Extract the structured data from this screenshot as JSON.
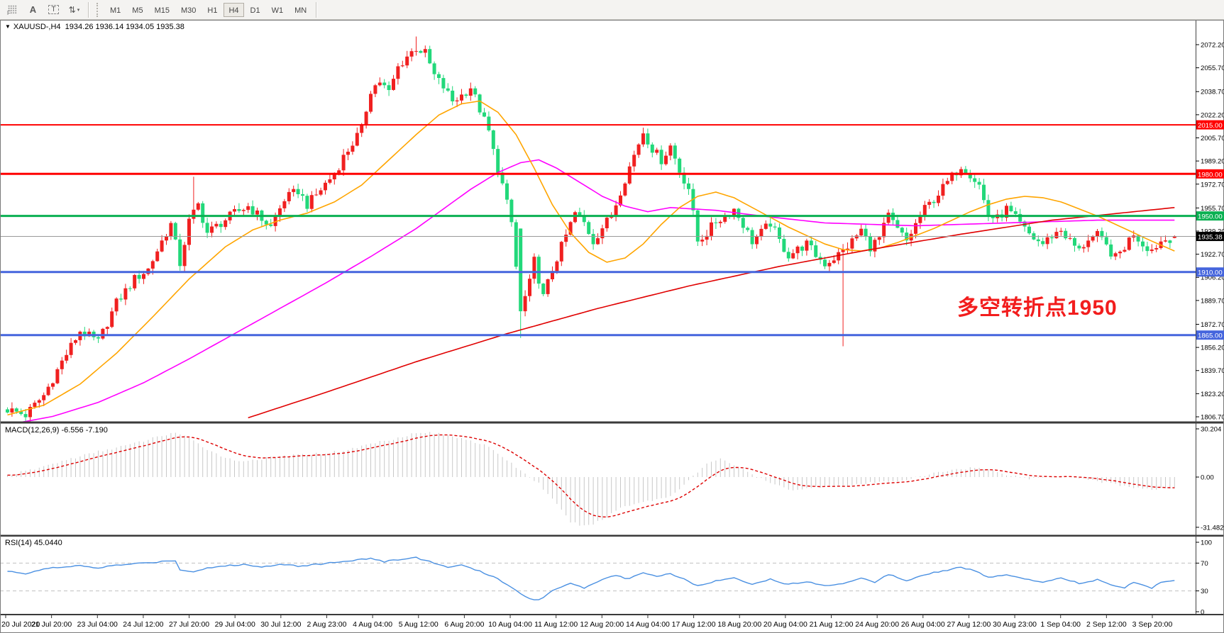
{
  "toolbar": {
    "tools": [
      {
        "name": "fibonacci-grid-tool",
        "type": "grid-f",
        "glyph": "F"
      },
      {
        "name": "text-tool",
        "type": "letter",
        "glyph": "A"
      },
      {
        "name": "text-label-tool",
        "type": "dashed-t",
        "glyph": "T"
      },
      {
        "name": "arrows-tool",
        "type": "arrows",
        "glyph": "⇅",
        "caret": "▾"
      }
    ],
    "timeframes": [
      "M1",
      "M5",
      "M15",
      "M30",
      "H1",
      "H4",
      "D1",
      "W1",
      "MN"
    ],
    "active_timeframe": "H4"
  },
  "chart": {
    "title_symbol": "XAUUSD-,H4",
    "title_ohlc": "1934.26 1936.14 1934.05 1935.38",
    "annotation": {
      "text": "多空转折点1950",
      "color": "#f21d1d"
    },
    "levels": [
      {
        "price": 2015.0,
        "label": "2015.00",
        "color": "#ff0000",
        "width": 2
      },
      {
        "price": 1980.0,
        "label": "1980.00",
        "color": "#ff0000",
        "width": 3
      },
      {
        "price": 1950.0,
        "label": "1950.00",
        "color": "#0ab052",
        "width": 3
      },
      {
        "price": 1910.0,
        "label": "1910.00",
        "color": "#4565dd",
        "width": 3
      },
      {
        "price": 1865.0,
        "label": "1865.00",
        "color": "#4565dd",
        "width": 3
      }
    ],
    "current_price": {
      "value": 1935.38,
      "label": "1935.38",
      "line_color": "#9a9a9a",
      "box_color": "#000000"
    },
    "price_axis_ticks": [
      "2072.20",
      "2055.70",
      "2038.70",
      "2022.20",
      "2005.70",
      "1989.20",
      "1972.70",
      "1955.70",
      "1939.20",
      "1922.70",
      "1906.20",
      "1889.70",
      "1872.70",
      "1856.20",
      "1839.70",
      "1823.20",
      "1806.70"
    ],
    "time_axis_ticks": [
      "20 Jul 2020",
      "21 Jul 20:00",
      "23 Jul 04:00",
      "24 Jul 12:00",
      "27 Jul 20:00",
      "29 Jul 04:00",
      "30 Jul 12:00",
      "2 Aug 23:00",
      "4 Aug 04:00",
      "5 Aug 12:00",
      "6 Aug 20:00",
      "10 Aug 04:00",
      "11 Aug 12:00",
      "12 Aug 20:00",
      "14 Aug 04:00",
      "17 Aug 12:00",
      "18 Aug 20:00",
      "20 Aug 04:00",
      "21 Aug 12:00",
      "24 Aug 20:00",
      "26 Aug 04:00",
      "27 Aug 12:00",
      "30 Aug 23:00",
      "1 Sep 04:00",
      "2 Sep 12:00",
      "3 Sep 20:00"
    ]
  },
  "macd": {
    "label": "MACD(12,26,9) -6.556 -7.190",
    "axis": [
      "30.204",
      "0.00",
      "-31.482"
    ],
    "hist_color": "#c8c8c8",
    "signal_color": "#dd0000"
  },
  "rsi": {
    "label": "RSI(14) 45.0440",
    "axis": [
      "100",
      "70",
      "30",
      "0"
    ],
    "levels": [
      70,
      30
    ],
    "line_color": "#4a90e2",
    "level_color": "#c0c0c0"
  },
  "chart_data": {
    "type": "candlestick",
    "symbol": "XAUUSD-",
    "period": "H4",
    "title": "XAUUSD- H4 with MACD(12,26,9) and RSI(14)",
    "ylim": [
      1806.7,
      2072.2
    ],
    "macd_ylim": [
      -31.482,
      30.204
    ],
    "rsi_ylim": [
      0,
      100
    ],
    "last_ohlc": {
      "open": 1934.26,
      "high": 1936.14,
      "low": 1934.05,
      "close": 1935.38
    },
    "candles_count": 258,
    "bull_color": "#f02020",
    "bear_color": "#22d87a",
    "ma_colors": {
      "fast": "#ffa500",
      "mid": "#ff00ff",
      "slow": "#e00000"
    },
    "price_path": [
      [
        0,
        1812
      ],
      [
        4,
        1808
      ],
      [
        8,
        1822
      ],
      [
        12,
        1846
      ],
      [
        16,
        1868
      ],
      [
        20,
        1860
      ],
      [
        24,
        1888
      ],
      [
        28,
        1905
      ],
      [
        31,
        1912
      ],
      [
        34,
        1932
      ],
      [
        36,
        1944
      ],
      [
        38,
        1916
      ],
      [
        40,
        1946
      ],
      [
        42,
        1958
      ],
      [
        44,
        1938
      ],
      [
        47,
        1945
      ],
      [
        50,
        1952
      ],
      [
        53,
        1957
      ],
      [
        56,
        1948
      ],
      [
        58,
        1942
      ],
      [
        61,
        1962
      ],
      [
        64,
        1968
      ],
      [
        66,
        1958
      ],
      [
        68,
        1965
      ],
      [
        70,
        1973
      ],
      [
        72,
        1980
      ],
      [
        74,
        1992
      ],
      [
        76,
        2002
      ],
      [
        78,
        2012
      ],
      [
        80,
        2040
      ],
      [
        82,
        2046
      ],
      [
        84,
        2038
      ],
      [
        86,
        2056
      ],
      [
        88,
        2064
      ],
      [
        90,
        2070
      ],
      [
        92,
        2066
      ],
      [
        94,
        2050
      ],
      [
        96,
        2042
      ],
      [
        98,
        2032
      ],
      [
        100,
        2036
      ],
      [
        102,
        2042
      ],
      [
        104,
        2026
      ],
      [
        106,
        2010
      ],
      [
        107,
        1996
      ],
      [
        109,
        1972
      ],
      [
        111,
        1945
      ],
      [
        113,
        1882
      ],
      [
        115,
        1902
      ],
      [
        116,
        1918
      ],
      [
        118,
        1892
      ],
      [
        120,
        1912
      ],
      [
        122,
        1928
      ],
      [
        125,
        1952
      ],
      [
        127,
        1945
      ],
      [
        129,
        1932
      ],
      [
        131,
        1942
      ],
      [
        133,
        1950
      ],
      [
        135,
        1968
      ],
      [
        137,
        1985
      ],
      [
        139,
        2002
      ],
      [
        140,
        2010
      ],
      [
        142,
        1998
      ],
      [
        144,
        1990
      ],
      [
        146,
        2000
      ],
      [
        148,
        1982
      ],
      [
        150,
        1970
      ],
      [
        152,
        1932
      ],
      [
        154,
        1938
      ],
      [
        156,
        1946
      ],
      [
        158,
        1950
      ],
      [
        160,
        1955
      ],
      [
        162,
        1944
      ],
      [
        164,
        1932
      ],
      [
        166,
        1938
      ],
      [
        168,
        1945
      ],
      [
        170,
        1932
      ],
      [
        172,
        1922
      ],
      [
        174,
        1926
      ],
      [
        176,
        1930
      ],
      [
        178,
        1922
      ],
      [
        180,
        1916
      ],
      [
        182,
        1920
      ],
      [
        184,
        1925
      ],
      [
        186,
        1932
      ],
      [
        188,
        1940
      ],
      [
        190,
        1928
      ],
      [
        192,
        1934
      ],
      [
        194,
        1950
      ],
      [
        196,
        1940
      ],
      [
        198,
        1932
      ],
      [
        200,
        1944
      ],
      [
        202,
        1955
      ],
      [
        204,
        1962
      ],
      [
        206,
        1970
      ],
      [
        208,
        1978
      ],
      [
        210,
        1986
      ],
      [
        212,
        1980
      ],
      [
        214,
        1972
      ],
      [
        216,
        1950
      ],
      [
        218,
        1948
      ],
      [
        220,
        1955
      ],
      [
        222,
        1948
      ],
      [
        224,
        1940
      ],
      [
        226,
        1934
      ],
      [
        228,
        1930
      ],
      [
        230,
        1936
      ],
      [
        232,
        1940
      ],
      [
        234,
        1932
      ],
      [
        236,
        1925
      ],
      [
        238,
        1934
      ],
      [
        240,
        1936
      ],
      [
        242,
        1928
      ],
      [
        244,
        1920
      ],
      [
        246,
        1928
      ],
      [
        248,
        1938
      ],
      [
        250,
        1930
      ],
      [
        252,
        1926
      ],
      [
        254,
        1932
      ],
      [
        257,
        1935.38
      ]
    ],
    "spikes": [
      {
        "i": 41,
        "high": 1978
      },
      {
        "i": 90,
        "high": 2078
      },
      {
        "i": 113,
        "open": 1941,
        "close": 1882,
        "low": 1863
      },
      {
        "i": 184,
        "low": 1857
      },
      {
        "i": 257,
        "open": 1934.26,
        "high": 1936.14,
        "low": 1934.05,
        "close": 1935.38
      }
    ],
    "ma_fast": [
      [
        0,
        1808
      ],
      [
        8,
        1815
      ],
      [
        16,
        1830
      ],
      [
        24,
        1852
      ],
      [
        32,
        1878
      ],
      [
        40,
        1905
      ],
      [
        48,
        1928
      ],
      [
        54,
        1940
      ],
      [
        60,
        1947
      ],
      [
        66,
        1952
      ],
      [
        72,
        1960
      ],
      [
        78,
        1972
      ],
      [
        84,
        1990
      ],
      [
        90,
        2008
      ],
      [
        95,
        2022
      ],
      [
        100,
        2030
      ],
      [
        104,
        2032
      ],
      [
        108,
        2024
      ],
      [
        112,
        2008
      ],
      [
        116,
        1984
      ],
      [
        120,
        1958
      ],
      [
        124,
        1938
      ],
      [
        128,
        1924
      ],
      [
        132,
        1917
      ],
      [
        136,
        1920
      ],
      [
        140,
        1930
      ],
      [
        144,
        1944
      ],
      [
        148,
        1956
      ],
      [
        152,
        1964
      ],
      [
        156,
        1967
      ],
      [
        160,
        1963
      ],
      [
        164,
        1956
      ],
      [
        168,
        1949
      ],
      [
        172,
        1942
      ],
      [
        176,
        1936
      ],
      [
        180,
        1930
      ],
      [
        184,
        1926
      ],
      [
        188,
        1925
      ],
      [
        192,
        1927
      ],
      [
        196,
        1931
      ],
      [
        200,
        1936
      ],
      [
        204,
        1941
      ],
      [
        208,
        1947
      ],
      [
        212,
        1953
      ],
      [
        216,
        1958
      ],
      [
        220,
        1962
      ],
      [
        224,
        1964
      ],
      [
        228,
        1963
      ],
      [
        232,
        1960
      ],
      [
        236,
        1955
      ],
      [
        240,
        1950
      ],
      [
        244,
        1944
      ],
      [
        248,
        1938
      ],
      [
        252,
        1932
      ],
      [
        257,
        1925
      ]
    ],
    "ma_mid": [
      [
        0,
        1801
      ],
      [
        10,
        1807
      ],
      [
        20,
        1817
      ],
      [
        30,
        1831
      ],
      [
        40,
        1848
      ],
      [
        50,
        1866
      ],
      [
        60,
        1884
      ],
      [
        70,
        1902
      ],
      [
        80,
        1921
      ],
      [
        90,
        1941
      ],
      [
        96,
        1955
      ],
      [
        102,
        1969
      ],
      [
        108,
        1981
      ],
      [
        113,
        1988
      ],
      [
        117,
        1990
      ],
      [
        121,
        1984
      ],
      [
        126,
        1974
      ],
      [
        131,
        1964
      ],
      [
        136,
        1957
      ],
      [
        141,
        1953
      ],
      [
        146,
        1956
      ],
      [
        156,
        1954
      ],
      [
        166,
        1950
      ],
      [
        180,
        1945
      ],
      [
        200,
        1943
      ],
      [
        220,
        1945
      ],
      [
        240,
        1947
      ],
      [
        257,
        1947
      ]
    ],
    "ma_slow": [
      [
        53,
        1806
      ],
      [
        70,
        1824
      ],
      [
        90,
        1846
      ],
      [
        110,
        1866
      ],
      [
        130,
        1884
      ],
      [
        150,
        1900
      ],
      [
        170,
        1914
      ],
      [
        190,
        1926
      ],
      [
        210,
        1937
      ],
      [
        230,
        1947
      ],
      [
        245,
        1952
      ],
      [
        257,
        1956
      ]
    ],
    "macd_path": [
      [
        0,
        1
      ],
      [
        6,
        5
      ],
      [
        12,
        10
      ],
      [
        20,
        16
      ],
      [
        28,
        21
      ],
      [
        34,
        26
      ],
      [
        37,
        28
      ],
      [
        40,
        24
      ],
      [
        45,
        16
      ],
      [
        50,
        10
      ],
      [
        55,
        11
      ],
      [
        60,
        13
      ],
      [
        65,
        14
      ],
      [
        70,
        15
      ],
      [
        75,
        17
      ],
      [
        80,
        21
      ],
      [
        85,
        24
      ],
      [
        89,
        27
      ],
      [
        93,
        28
      ],
      [
        97,
        26
      ],
      [
        101,
        24
      ],
      [
        105,
        20
      ],
      [
        109,
        13
      ],
      [
        113,
        4
      ],
      [
        117,
        -4
      ],
      [
        120,
        -14
      ],
      [
        124,
        -28
      ],
      [
        127,
        -31
      ],
      [
        131,
        -27
      ],
      [
        135,
        -19
      ],
      [
        139,
        -16
      ],
      [
        143,
        -14
      ],
      [
        146,
        -12
      ],
      [
        150,
        -2
      ],
      [
        154,
        8
      ],
      [
        157,
        12
      ],
      [
        161,
        6
      ],
      [
        165,
        0
      ],
      [
        169,
        -5
      ],
      [
        173,
        -8
      ],
      [
        177,
        -7
      ],
      [
        181,
        -5
      ],
      [
        185,
        -6
      ],
      [
        189,
        -4
      ],
      [
        193,
        -3
      ],
      [
        197,
        -2
      ],
      [
        201,
        0
      ],
      [
        205,
        3
      ],
      [
        209,
        5
      ],
      [
        213,
        6
      ],
      [
        217,
        4
      ],
      [
        221,
        1
      ],
      [
        225,
        -1
      ],
      [
        229,
        0
      ],
      [
        233,
        1
      ],
      [
        237,
        -1
      ],
      [
        241,
        -3
      ],
      [
        245,
        -5
      ],
      [
        249,
        -7
      ],
      [
        252,
        -8
      ],
      [
        257,
        -6.556
      ]
    ],
    "rsi_path": [
      [
        0,
        58
      ],
      [
        4,
        55
      ],
      [
        8,
        62
      ],
      [
        12,
        64
      ],
      [
        16,
        66
      ],
      [
        20,
        63
      ],
      [
        24,
        67
      ],
      [
        28,
        69
      ],
      [
        32,
        71
      ],
      [
        35,
        73
      ],
      [
        37,
        74
      ],
      [
        38,
        60
      ],
      [
        41,
        58
      ],
      [
        44,
        63
      ],
      [
        48,
        66
      ],
      [
        52,
        68
      ],
      [
        56,
        64
      ],
      [
        60,
        69
      ],
      [
        64,
        66
      ],
      [
        68,
        68
      ],
      [
        72,
        71
      ],
      [
        76,
        74
      ],
      [
        80,
        77
      ],
      [
        83,
        72
      ],
      [
        86,
        75
      ],
      [
        90,
        78
      ],
      [
        94,
        70
      ],
      [
        97,
        64
      ],
      [
        100,
        67
      ],
      [
        104,
        58
      ],
      [
        108,
        48
      ],
      [
        112,
        30
      ],
      [
        115,
        19
      ],
      [
        117,
        17
      ],
      [
        120,
        30
      ],
      [
        124,
        42
      ],
      [
        127,
        34
      ],
      [
        130,
        44
      ],
      [
        134,
        52
      ],
      [
        137,
        47
      ],
      [
        140,
        57
      ],
      [
        143,
        51
      ],
      [
        146,
        55
      ],
      [
        149,
        47
      ],
      [
        152,
        37
      ],
      [
        156,
        44
      ],
      [
        160,
        50
      ],
      [
        164,
        39
      ],
      [
        168,
        47
      ],
      [
        172,
        39
      ],
      [
        176,
        44
      ],
      [
        180,
        37
      ],
      [
        184,
        41
      ],
      [
        188,
        49
      ],
      [
        191,
        42
      ],
      [
        194,
        54
      ],
      [
        198,
        45
      ],
      [
        202,
        54
      ],
      [
        206,
        59
      ],
      [
        210,
        64
      ],
      [
        213,
        59
      ],
      [
        216,
        49
      ],
      [
        220,
        54
      ],
      [
        224,
        47
      ],
      [
        228,
        43
      ],
      [
        232,
        49
      ],
      [
        236,
        41
      ],
      [
        240,
        46
      ],
      [
        244,
        37
      ],
      [
        246,
        34
      ],
      [
        248,
        43
      ],
      [
        250,
        39
      ],
      [
        252,
        34
      ],
      [
        254,
        43
      ],
      [
        257,
        45.044
      ]
    ]
  }
}
